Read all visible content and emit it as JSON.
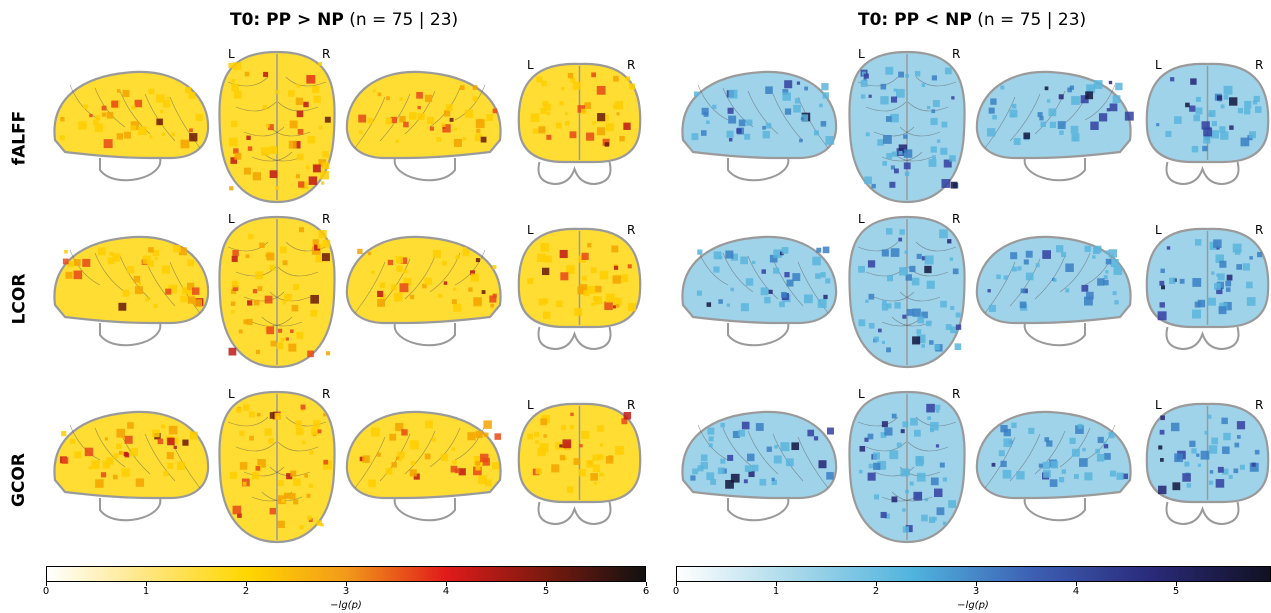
{
  "panels": [
    {
      "title_bold": "T0: PP > NP",
      "title_rest": "(n = 75 | 23)",
      "scheme": "hot"
    },
    {
      "title_bold": "T0: PP < NP",
      "title_rest": "(n = 75 | 23)",
      "scheme": "cold"
    }
  ],
  "rows": [
    "fALFF",
    "LCOR",
    "GCOR"
  ],
  "hemi": {
    "left": "L",
    "right": "R"
  },
  "colorbars": [
    {
      "label": "−lg(p)",
      "ticks": [
        "0",
        "1",
        "2",
        "3",
        "4",
        "5",
        "6"
      ],
      "stops": [
        "#ffffff",
        "#ffe680",
        "#ffd700",
        "#f29a1a",
        "#e01b1b",
        "#7a1a0f",
        "#111111"
      ]
    },
    {
      "label": "−lg(p)",
      "ticks": [
        "0",
        "1",
        "2",
        "3",
        "4",
        "5"
      ],
      "stops": [
        "#ffffff",
        "#a7d8ea",
        "#4fb3dd",
        "#3d5fb3",
        "#2a2a7a",
        "#111122"
      ]
    }
  ],
  "colors": {
    "outline": "#9a9a9a",
    "hot_fill": "#ffdd33",
    "cold_fill": "#9fd3ea"
  }
}
